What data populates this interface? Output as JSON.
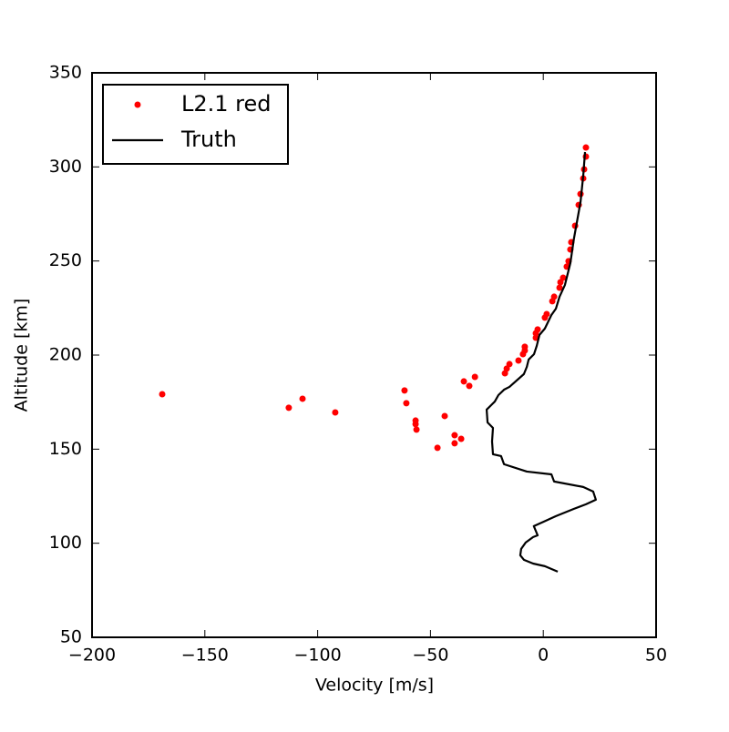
{
  "chart_data": {
    "type": "scatter",
    "x_label": "Velocity [m/s]",
    "y_label": "Altitude [km]",
    "xlim": [
      -200,
      50
    ],
    "ylim": [
      50,
      350
    ],
    "xticks": [
      {
        "value": -200,
        "label": "−200"
      },
      {
        "value": -150,
        "label": "−150"
      },
      {
        "value": -100,
        "label": "−100"
      },
      {
        "value": -50,
        "label": "−50"
      },
      0,
      50
    ],
    "yticks": [
      50,
      100,
      150,
      200,
      250,
      300,
      350
    ],
    "legend": "upper left",
    "series": [
      {
        "name": "L2.1 red",
        "color": "#ff0000",
        "style": "markers",
        "x": [
          -168.9,
          -112.8,
          -106.7,
          -92.2,
          -61.5,
          -60.7,
          -56.6,
          -56.6,
          -56.2,
          -43.7,
          -46.9,
          -39.3,
          -39.3,
          -36.4,
          -35.2,
          -32.8,
          -30.3,
          -17.0,
          -16.2,
          -15.0,
          -11.0,
          -9.0,
          -8.2,
          -8.2,
          -3.3,
          -3.3,
          -2.5,
          0.7,
          1.5,
          4.0,
          4.8,
          7.2,
          7.6,
          8.8,
          10.4,
          11.2,
          12.0,
          12.4,
          14.1,
          15.7,
          16.5,
          17.7,
          18.1,
          18.9,
          18.9
        ],
        "values": [
          179.2,
          172.0,
          176.8,
          169.5,
          181.2,
          174.4,
          165.2,
          163.3,
          160.4,
          167.6,
          150.7,
          157.4,
          153.1,
          155.5,
          186.0,
          183.6,
          188.4,
          190.3,
          192.8,
          195.2,
          197.1,
          200.5,
          202.4,
          204.4,
          209.2,
          211.6,
          213.6,
          219.9,
          221.8,
          228.6,
          231.0,
          235.8,
          238.7,
          241.1,
          247.0,
          249.9,
          256.1,
          260.0,
          268.7,
          279.8,
          285.6,
          293.9,
          298.7,
          305.5,
          310.3
        ]
      },
      {
        "name": "Truth",
        "color": "#000000",
        "style": "line",
        "x": [
          6.4,
          0.7,
          -4.5,
          -8.6,
          -10.2,
          -9.8,
          -7.8,
          -4.5,
          -2.5,
          -4.2,
          0.3,
          5.6,
          13.6,
          18.9,
          23.3,
          22.1,
          17.7,
          4.8,
          3.6,
          -7.3,
          -17.4,
          -18.7,
          -22.3,
          -22.7,
          -22.3,
          -24.7,
          -25.1,
          -23.1,
          -21.5,
          -19.9,
          -17.4,
          -15.0,
          -8.6,
          -7.3,
          -6.5,
          -4.1,
          -2.9,
          -1.7,
          0.7,
          3.6,
          5.6,
          7.2,
          9.6,
          12.0,
          13.6,
          16.5,
          17.7,
          18.5
        ],
        "values": [
          84.9,
          87.8,
          89.2,
          91.2,
          93.6,
          97.0,
          100.4,
          103.3,
          104.2,
          109.1,
          111.5,
          114.4,
          118.3,
          120.7,
          123.1,
          127.5,
          129.9,
          132.8,
          136.6,
          138.1,
          142.0,
          146.3,
          147.3,
          154.1,
          161.3,
          164.2,
          171.0,
          173.4,
          175.3,
          178.7,
          181.6,
          183.1,
          189.9,
          193.7,
          197.6,
          200.5,
          204.9,
          210.7,
          214.1,
          221.3,
          224.7,
          231.0,
          237.3,
          248.9,
          262.0,
          281.3,
          295.3,
          307.9
        ]
      }
    ]
  }
}
